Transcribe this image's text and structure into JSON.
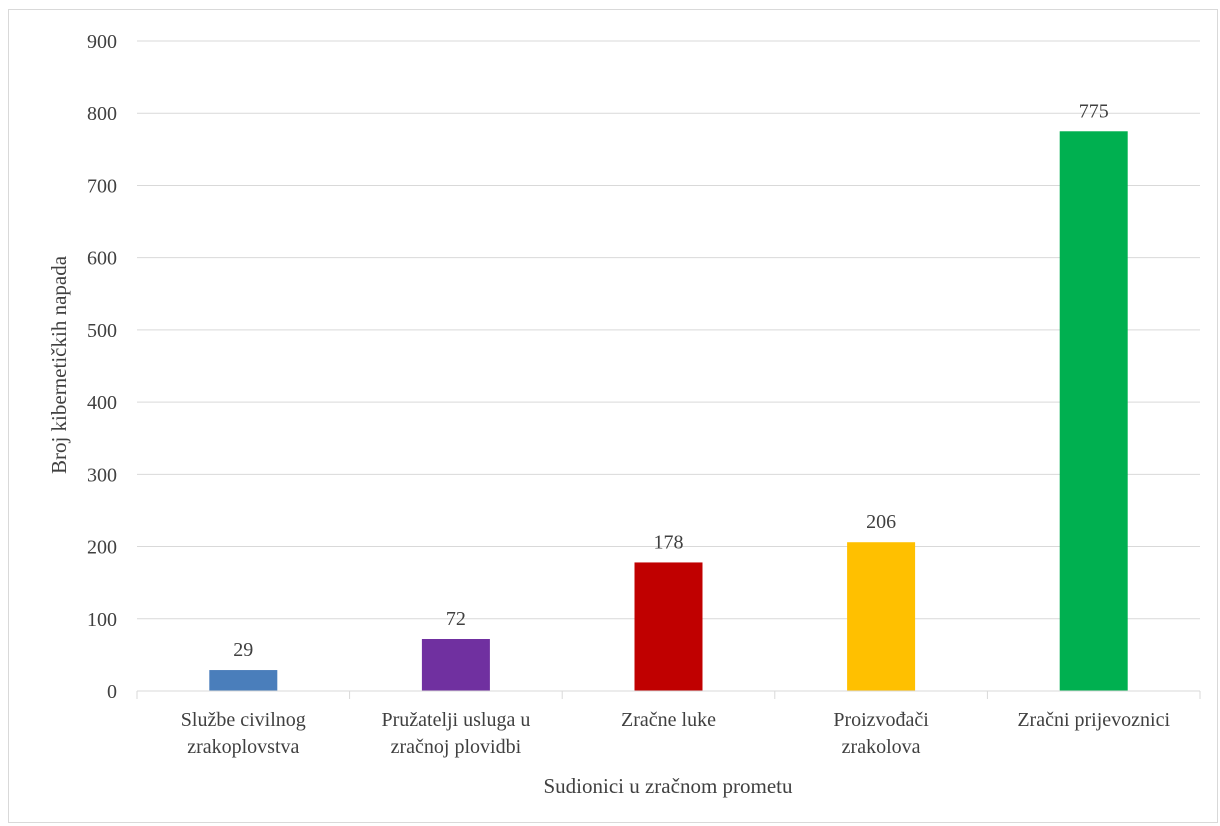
{
  "chart_data": {
    "type": "bar",
    "title": "",
    "xlabel": "Sudionici u zračnom prometu",
    "ylabel": "Broj kibernetičkih napada",
    "ylim": [
      0,
      900
    ],
    "yticks": [
      0,
      100,
      200,
      300,
      400,
      500,
      600,
      700,
      800,
      900
    ],
    "grid": true,
    "legend": "none",
    "categories": [
      [
        "Službe civilnog",
        "zrakoplovstva"
      ],
      [
        "Pružatelji usluga u",
        "zračnoj plovidbi"
      ],
      [
        "Zračne luke"
      ],
      [
        "Proizvođači",
        "zrakolova"
      ],
      [
        "Zračni prijevoznici"
      ]
    ],
    "values": [
      29,
      72,
      178,
      206,
      775
    ],
    "data_labels": [
      "29",
      "72",
      "178",
      "206",
      "775"
    ],
    "colors": [
      "#4a7ebb",
      "#7030a0",
      "#c00000",
      "#ffc000",
      "#00b050"
    ]
  }
}
